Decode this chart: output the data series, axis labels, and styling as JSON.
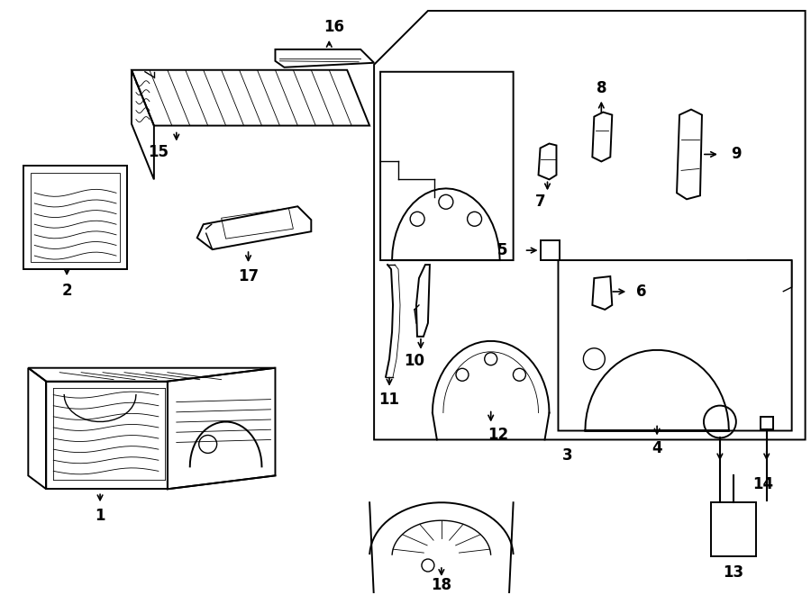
{
  "bg_color": "#ffffff",
  "line_color": "#000000",
  "lw_heavy": 1.4,
  "lw_med": 1.0,
  "lw_light": 0.6,
  "fs_label": 12,
  "figsize": [
    9.0,
    6.61
  ],
  "dpi": 100
}
